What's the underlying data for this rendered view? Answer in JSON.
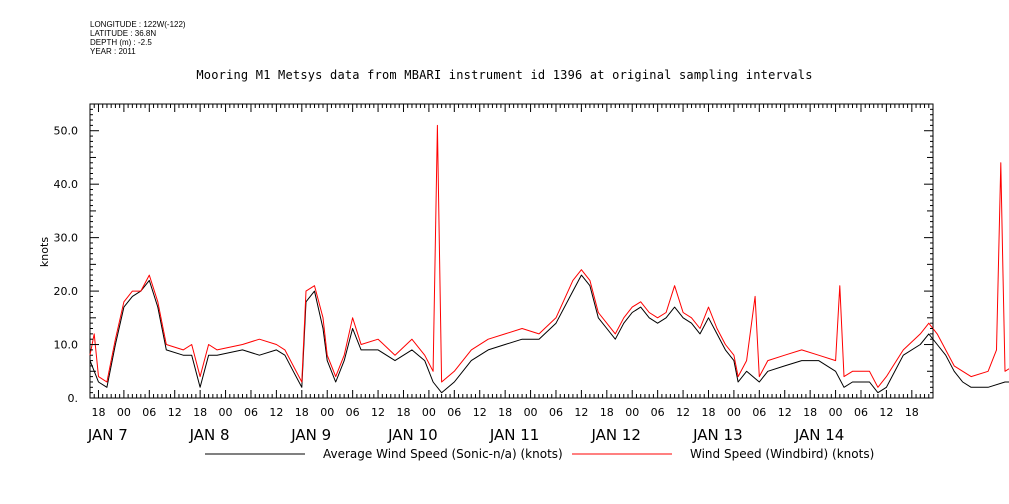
{
  "header": {
    "meta_lines": [
      "LONGITUDE : 122W(-122)",
      "LATITUDE : 36.8N",
      "DEPTH (m) : -2.5",
      "YEAR : 2011"
    ],
    "title": "Mooring M1 Metsys data from MBARI instrument id 1396 at original sampling intervals"
  },
  "chart_data": {
    "type": "line",
    "title": "Mooring M1 Metsys data from MBARI instrument id 1396 at original sampling intervals",
    "xlabel": "",
    "ylabel": "knots",
    "ylim": [
      0,
      55
    ],
    "yticks": [
      0,
      10,
      20,
      30,
      40,
      50
    ],
    "ytick_labels": [
      "0.",
      "10.0",
      "20.0",
      "30.0",
      "40.0",
      "50.0"
    ],
    "xlim_hours": [
      "2011-01-06T16:00",
      "2011-01-14T23:00"
    ],
    "hour_ticks": [
      {
        "t": "2011-01-06T18:00",
        "label": "18"
      },
      {
        "t": "2011-01-07T00:00",
        "label": "00"
      },
      {
        "t": "2011-01-07T06:00",
        "label": "06"
      },
      {
        "t": "2011-01-07T12:00",
        "label": "12"
      },
      {
        "t": "2011-01-07T18:00",
        "label": "18"
      },
      {
        "t": "2011-01-08T00:00",
        "label": "00"
      },
      {
        "t": "2011-01-08T06:00",
        "label": "06"
      },
      {
        "t": "2011-01-08T12:00",
        "label": "12"
      },
      {
        "t": "2011-01-08T18:00",
        "label": "18"
      },
      {
        "t": "2011-01-09T00:00",
        "label": "00"
      },
      {
        "t": "2011-01-09T06:00",
        "label": "06"
      },
      {
        "t": "2011-01-09T12:00",
        "label": "12"
      },
      {
        "t": "2011-01-09T18:00",
        "label": "18"
      },
      {
        "t": "2011-01-10T00:00",
        "label": "00"
      },
      {
        "t": "2011-01-10T06:00",
        "label": "06"
      },
      {
        "t": "2011-01-10T12:00",
        "label": "12"
      },
      {
        "t": "2011-01-10T18:00",
        "label": "18"
      },
      {
        "t": "2011-01-11T00:00",
        "label": "00"
      },
      {
        "t": "2011-01-11T06:00",
        "label": "06"
      },
      {
        "t": "2011-01-11T12:00",
        "label": "12"
      },
      {
        "t": "2011-01-11T18:00",
        "label": "18"
      },
      {
        "t": "2011-01-12T00:00",
        "label": "00"
      },
      {
        "t": "2011-01-12T06:00",
        "label": "06"
      },
      {
        "t": "2011-01-12T12:00",
        "label": "12"
      },
      {
        "t": "2011-01-12T18:00",
        "label": "18"
      },
      {
        "t": "2011-01-13T00:00",
        "label": "00"
      },
      {
        "t": "2011-01-13T06:00",
        "label": "06"
      },
      {
        "t": "2011-01-13T12:00",
        "label": "12"
      },
      {
        "t": "2011-01-13T18:00",
        "label": "18"
      },
      {
        "t": "2011-01-14T00:00",
        "label": "00"
      },
      {
        "t": "2011-01-14T06:00",
        "label": "06"
      },
      {
        "t": "2011-01-14T12:00",
        "label": "12"
      },
      {
        "t": "2011-01-14T18:00",
        "label": "18"
      }
    ],
    "day_labels": [
      {
        "t": "2011-01-07T00:00",
        "label": "JAN  7"
      },
      {
        "t": "2011-01-08T00:00",
        "label": "JAN  8"
      },
      {
        "t": "2011-01-09T00:00",
        "label": "JAN  9"
      },
      {
        "t": "2011-01-10T00:00",
        "label": "JAN 10"
      },
      {
        "t": "2011-01-11T00:00",
        "label": "JAN 11"
      },
      {
        "t": "2011-01-12T00:00",
        "label": "JAN 12"
      },
      {
        "t": "2011-01-13T00:00",
        "label": "JAN 13"
      },
      {
        "t": "2011-01-14T00:00",
        "label": "JAN 14"
      }
    ],
    "series": [
      {
        "name": "Average Wind Speed (Sonic-n/a) (knots)",
        "color": "#000000",
        "points": [
          [
            "2011-01-06T16:00",
            7
          ],
          [
            "2011-01-06T18:00",
            3
          ],
          [
            "2011-01-06T20:00",
            2
          ],
          [
            "2011-01-06T22:00",
            10
          ],
          [
            "2011-01-07T00:00",
            17
          ],
          [
            "2011-01-07T02:00",
            19
          ],
          [
            "2011-01-07T04:00",
            20
          ],
          [
            "2011-01-07T06:00",
            22
          ],
          [
            "2011-01-07T08:00",
            17
          ],
          [
            "2011-01-07T10:00",
            9
          ],
          [
            "2011-01-07T14:00",
            8
          ],
          [
            "2011-01-07T16:00",
            8
          ],
          [
            "2011-01-07T18:00",
            2
          ],
          [
            "2011-01-07T20:00",
            8
          ],
          [
            "2011-01-07T22:00",
            8
          ],
          [
            "2011-01-08T04:00",
            9
          ],
          [
            "2011-01-08T08:00",
            8
          ],
          [
            "2011-01-08T12:00",
            9
          ],
          [
            "2011-01-08T14:00",
            8
          ],
          [
            "2011-01-08T16:00",
            5
          ],
          [
            "2011-01-08T18:00",
            2
          ],
          [
            "2011-01-08T19:00",
            18
          ],
          [
            "2011-01-08T21:00",
            20
          ],
          [
            "2011-01-08T23:00",
            13
          ],
          [
            "2011-01-09T00:00",
            7
          ],
          [
            "2011-01-09T02:00",
            3
          ],
          [
            "2011-01-09T04:00",
            7
          ],
          [
            "2011-01-09T06:00",
            13
          ],
          [
            "2011-01-09T08:00",
            9
          ],
          [
            "2011-01-09T12:00",
            9
          ],
          [
            "2011-01-09T16:00",
            7
          ],
          [
            "2011-01-09T20:00",
            9
          ],
          [
            "2011-01-09T23:00",
            7
          ],
          [
            "2011-01-10T01:00",
            3
          ],
          [
            "2011-01-10T03:00",
            1
          ],
          [
            "2011-01-10T06:00",
            3
          ],
          [
            "2011-01-10T10:00",
            7
          ],
          [
            "2011-01-10T14:00",
            9
          ],
          [
            "2011-01-10T18:00",
            10
          ],
          [
            "2011-01-10T22:00",
            11
          ],
          [
            "2011-01-11T02:00",
            11
          ],
          [
            "2011-01-11T06:00",
            14
          ],
          [
            "2011-01-11T10:00",
            20
          ],
          [
            "2011-01-11T12:00",
            23
          ],
          [
            "2011-01-11T14:00",
            21
          ],
          [
            "2011-01-11T16:00",
            15
          ],
          [
            "2011-01-11T18:00",
            13
          ],
          [
            "2011-01-11T20:00",
            11
          ],
          [
            "2011-01-11T22:00",
            14
          ],
          [
            "2011-01-12T00:00",
            16
          ],
          [
            "2011-01-12T02:00",
            17
          ],
          [
            "2011-01-12T04:00",
            15
          ],
          [
            "2011-01-12T06:00",
            14
          ],
          [
            "2011-01-12T08:00",
            15
          ],
          [
            "2011-01-12T10:00",
            17
          ],
          [
            "2011-01-12T12:00",
            15
          ],
          [
            "2011-01-12T14:00",
            14
          ],
          [
            "2011-01-12T16:00",
            12
          ],
          [
            "2011-01-12T18:00",
            15
          ],
          [
            "2011-01-12T20:00",
            12
          ],
          [
            "2011-01-12T22:00",
            9
          ],
          [
            "2011-01-13T00:00",
            7
          ],
          [
            "2011-01-13T01:00",
            3
          ],
          [
            "2011-01-13T03:00",
            5
          ],
          [
            "2011-01-13T06:00",
            3
          ],
          [
            "2011-01-13T08:00",
            5
          ],
          [
            "2011-01-13T12:00",
            6
          ],
          [
            "2011-01-13T16:00",
            7
          ],
          [
            "2011-01-13T20:00",
            7
          ],
          [
            "2011-01-14T00:00",
            5
          ],
          [
            "2011-01-14T02:00",
            2
          ],
          [
            "2011-01-14T04:00",
            3
          ],
          [
            "2011-01-14T08:00",
            3
          ],
          [
            "2011-01-14T10:00",
            1
          ],
          [
            "2011-01-14T12:00",
            2
          ],
          [
            "2011-01-14T16:00",
            8
          ],
          [
            "2011-01-14T20:00",
            10
          ],
          [
            "2011-01-14T22:00",
            12
          ],
          [
            "2011-01-15T00:00",
            10
          ],
          [
            "2011-01-15T02:00",
            8
          ],
          [
            "2011-01-15T04:00",
            5
          ],
          [
            "2011-01-15T06:00",
            3
          ],
          [
            "2011-01-15T08:00",
            2
          ],
          [
            "2011-01-15T12:00",
            2
          ],
          [
            "2011-01-15T16:00",
            3
          ],
          [
            "2011-01-15T20:00",
            3
          ],
          [
            "2011-01-15T23:00",
            4
          ]
        ]
      },
      {
        "name": "Wind Speed (Windbird) (knots)",
        "color": "#ff0000",
        "points": [
          [
            "2011-01-06T16:00",
            8
          ],
          [
            "2011-01-06T17:00",
            12
          ],
          [
            "2011-01-06T18:00",
            4
          ],
          [
            "2011-01-06T20:00",
            3
          ],
          [
            "2011-01-06T22:00",
            11
          ],
          [
            "2011-01-07T00:00",
            18
          ],
          [
            "2011-01-07T02:00",
            20
          ],
          [
            "2011-01-07T04:00",
            20
          ],
          [
            "2011-01-07T06:00",
            23
          ],
          [
            "2011-01-07T08:00",
            18
          ],
          [
            "2011-01-07T10:00",
            10
          ],
          [
            "2011-01-07T14:00",
            9
          ],
          [
            "2011-01-07T16:00",
            10
          ],
          [
            "2011-01-07T18:00",
            4
          ],
          [
            "2011-01-07T20:00",
            10
          ],
          [
            "2011-01-07T22:00",
            9
          ],
          [
            "2011-01-08T04:00",
            10
          ],
          [
            "2011-01-08T08:00",
            11
          ],
          [
            "2011-01-08T12:00",
            10
          ],
          [
            "2011-01-08T14:00",
            9
          ],
          [
            "2011-01-08T16:00",
            6
          ],
          [
            "2011-01-08T18:00",
            3
          ],
          [
            "2011-01-08T19:00",
            20
          ],
          [
            "2011-01-08T21:00",
            21
          ],
          [
            "2011-01-08T23:00",
            15
          ],
          [
            "2011-01-09T00:00",
            8
          ],
          [
            "2011-01-09T02:00",
            4
          ],
          [
            "2011-01-09T04:00",
            8
          ],
          [
            "2011-01-09T06:00",
            15
          ],
          [
            "2011-01-09T08:00",
            10
          ],
          [
            "2011-01-09T12:00",
            11
          ],
          [
            "2011-01-09T16:00",
            8
          ],
          [
            "2011-01-09T20:00",
            11
          ],
          [
            "2011-01-09T23:00",
            8
          ],
          [
            "2011-01-10T01:00",
            5
          ],
          [
            "2011-01-10T02:00",
            51
          ],
          [
            "2011-01-10T02:30",
            27
          ],
          [
            "2011-01-10T03:00",
            3
          ],
          [
            "2011-01-10T06:00",
            5
          ],
          [
            "2011-01-10T10:00",
            9
          ],
          [
            "2011-01-10T14:00",
            11
          ],
          [
            "2011-01-10T18:00",
            12
          ],
          [
            "2011-01-10T22:00",
            13
          ],
          [
            "2011-01-11T02:00",
            12
          ],
          [
            "2011-01-11T06:00",
            15
          ],
          [
            "2011-01-11T10:00",
            22
          ],
          [
            "2011-01-11T12:00",
            24
          ],
          [
            "2011-01-11T14:00",
            22
          ],
          [
            "2011-01-11T16:00",
            16
          ],
          [
            "2011-01-11T18:00",
            14
          ],
          [
            "2011-01-11T20:00",
            12
          ],
          [
            "2011-01-11T22:00",
            15
          ],
          [
            "2011-01-12T00:00",
            17
          ],
          [
            "2011-01-12T02:00",
            18
          ],
          [
            "2011-01-12T04:00",
            16
          ],
          [
            "2011-01-12T06:00",
            15
          ],
          [
            "2011-01-12T08:00",
            16
          ],
          [
            "2011-01-12T10:00",
            21
          ],
          [
            "2011-01-12T12:00",
            16
          ],
          [
            "2011-01-12T14:00",
            15
          ],
          [
            "2011-01-12T16:00",
            13
          ],
          [
            "2011-01-12T18:00",
            17
          ],
          [
            "2011-01-12T20:00",
            13
          ],
          [
            "2011-01-12T22:00",
            10
          ],
          [
            "2011-01-13T00:00",
            8
          ],
          [
            "2011-01-13T01:00",
            4
          ],
          [
            "2011-01-13T03:00",
            7
          ],
          [
            "2011-01-13T05:00",
            19
          ],
          [
            "2011-01-13T06:00",
            4
          ],
          [
            "2011-01-13T08:00",
            7
          ],
          [
            "2011-01-13T12:00",
            8
          ],
          [
            "2011-01-13T16:00",
            9
          ],
          [
            "2011-01-13T20:00",
            8
          ],
          [
            "2011-01-14T00:00",
            7
          ],
          [
            "2011-01-14T01:00",
            21
          ],
          [
            "2011-01-14T02:00",
            4
          ],
          [
            "2011-01-14T04:00",
            5
          ],
          [
            "2011-01-14T08:00",
            5
          ],
          [
            "2011-01-14T10:00",
            2
          ],
          [
            "2011-01-14T12:00",
            4
          ],
          [
            "2011-01-14T16:00",
            9
          ],
          [
            "2011-01-14T20:00",
            12
          ],
          [
            "2011-01-14T22:00",
            14
          ],
          [
            "2011-01-15T00:00",
            12
          ],
          [
            "2011-01-15T02:00",
            9
          ],
          [
            "2011-01-15T04:00",
            6
          ],
          [
            "2011-01-15T06:00",
            5
          ],
          [
            "2011-01-15T08:00",
            4
          ],
          [
            "2011-01-15T12:00",
            5
          ],
          [
            "2011-01-15T14:00",
            9
          ],
          [
            "2011-01-15T15:00",
            44
          ],
          [
            "2011-01-15T15:30",
            24
          ],
          [
            "2011-01-15T16:00",
            5
          ],
          [
            "2011-01-15T20:00",
            7
          ],
          [
            "2011-01-15T23:00",
            8
          ]
        ]
      }
    ],
    "legend": [
      {
        "label": "Average Wind Speed (Sonic-n/a) (knots)",
        "color": "#000000"
      },
      {
        "label": "Wind Speed (Windbird) (knots)",
        "color": "#ff0000"
      }
    ],
    "legend_position": "bottom"
  }
}
